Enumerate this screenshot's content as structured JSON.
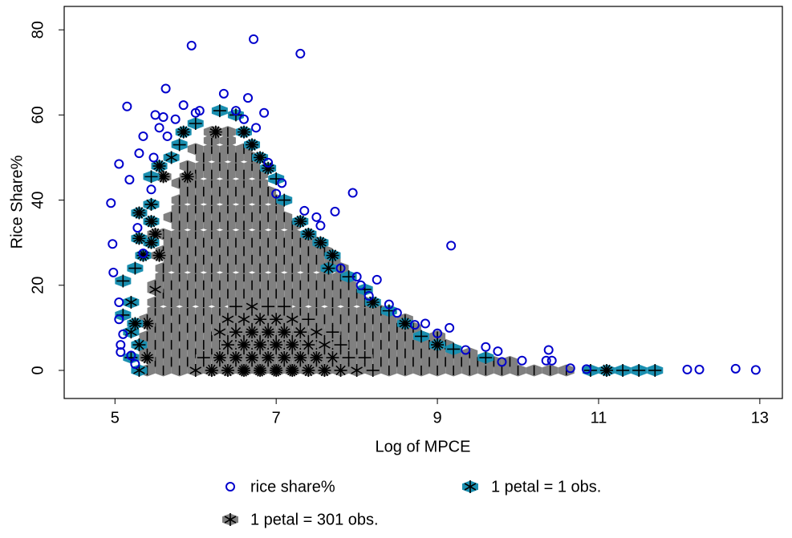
{
  "chart_data": {
    "type": "sunflower",
    "xlabel": "Log of MPCE",
    "ylabel": "Rice Share%",
    "xlim": [
      4.37,
      13.28
    ],
    "ylim": [
      -6.6,
      85.5
    ],
    "xticks": [
      5,
      7,
      9,
      11,
      13
    ],
    "yticks": [
      0,
      20,
      40,
      60,
      80
    ],
    "series": [
      {
        "name": "rice share%",
        "color": "#0000cc",
        "x": [
          4.95,
          4.97,
          4.98,
          5.05,
          5.05,
          5.05,
          5.07,
          5.07,
          5.1,
          5.15,
          5.18,
          5.2,
          5.25,
          5.28,
          5.3,
          5.35,
          5.35,
          5.45,
          5.48,
          5.5,
          5.55,
          5.6,
          5.63,
          5.65,
          5.75,
          5.85,
          5.95,
          6.0,
          6.05,
          6.35,
          6.5,
          6.6,
          6.65,
          6.72,
          6.75,
          6.85,
          6.9,
          7.0,
          7.07,
          7.3,
          7.35,
          7.5,
          7.55,
          7.73,
          7.8,
          7.95,
          8.0,
          8.05,
          8.15,
          8.25,
          8.4,
          8.5,
          8.72,
          8.85,
          9.0,
          9.15,
          9.17,
          9.35,
          9.6,
          9.75,
          9.8,
          10.05,
          10.35,
          10.38,
          10.42,
          10.65,
          10.85,
          12.1,
          12.25,
          12.7,
          12.95
        ],
        "y": [
          39.3,
          29.7,
          23,
          48.5,
          16,
          12,
          6,
          4.3,
          8.5,
          62,
          44.8,
          3.5,
          1.5,
          33.5,
          51,
          55,
          27.5,
          42.5,
          50,
          60,
          57,
          59.5,
          66.2,
          55,
          59,
          62.3,
          76.3,
          60.5,
          61,
          65,
          61,
          59,
          64,
          77.8,
          57,
          60.5,
          48.8,
          41.5,
          44,
          74.4,
          37.5,
          36,
          34,
          37.3,
          24,
          41.7,
          22,
          20,
          17.5,
          21.3,
          15.5,
          13.5,
          10.7,
          11,
          8.7,
          10,
          29.3,
          4.8,
          5.5,
          4.5,
          2,
          2.3,
          2.3,
          4.8,
          2.3,
          0.5,
          0.3,
          0.2,
          0.2,
          0.4,
          0.1
        ]
      },
      {
        "name": "1 petal = 1 obs.",
        "color": "#1a8fb0",
        "x": [
          5.3,
          5.2,
          5.3,
          5.2,
          5.25,
          5.1,
          5.2,
          5.1,
          5.25,
          5.35,
          5.45,
          5.3,
          5.45,
          5.3,
          5.45,
          5.45,
          5.55,
          5.7,
          5.8,
          5.85,
          6.0,
          6.3,
          6.5,
          6.6,
          6.7,
          6.8,
          6.9,
          7.0,
          7.1,
          7.3,
          7.4,
          7.55,
          7.7,
          7.65,
          7.9,
          8.1,
          8.2,
          8.4,
          8.6,
          8.8,
          9.0,
          9.2,
          9.6,
          10.9,
          11.1,
          11.3,
          11.5,
          11.7
        ],
        "y": [
          0,
          3,
          6,
          9,
          11,
          13,
          16,
          21,
          24,
          27,
          30,
          31,
          35,
          37,
          39,
          45.5,
          48,
          50,
          53,
          56,
          58,
          61,
          60,
          56,
          53,
          50,
          47.5,
          45,
          40,
          35,
          32,
          30,
          27,
          24,
          22,
          19,
          16,
          14,
          11,
          8,
          6,
          5,
          3,
          0,
          0,
          0,
          0,
          0
        ],
        "petals": [
          3,
          2,
          4,
          3,
          6,
          2,
          3,
          2,
          2,
          6,
          6,
          6,
          6,
          6,
          4,
          2,
          6,
          3,
          2,
          6,
          2,
          2,
          2,
          6,
          6,
          6,
          6,
          2,
          2,
          6,
          6,
          6,
          6,
          4,
          2,
          2,
          6,
          2,
          6,
          2,
          6,
          2,
          2,
          2,
          6,
          2,
          2,
          2
        ]
      },
      {
        "name": "1 petal = 301 obs.",
        "color": "#808080",
        "rows": [
          {
            "y": 0,
            "x_from": 5.4,
            "x_to": 10.6
          },
          {
            "y": 2,
            "x_from": 5.4,
            "x_to": 10.0
          },
          {
            "y": 4,
            "x_from": 5.4,
            "x_to": 9.4
          },
          {
            "y": 6,
            "x_from": 5.4,
            "x_to": 9.2
          },
          {
            "y": 8,
            "x_from": 5.4,
            "x_to": 9.0
          },
          {
            "y": 10,
            "x_from": 5.4,
            "x_to": 8.8
          },
          {
            "y": 12,
            "x_from": 5.4,
            "x_to": 8.6
          },
          {
            "y": 14,
            "x_from": 5.4,
            "x_to": 8.4
          },
          {
            "y": 16,
            "x_from": 5.5,
            "x_to": 8.2
          },
          {
            "y": 18,
            "x_from": 5.5,
            "x_to": 8.1
          },
          {
            "y": 20,
            "x_from": 5.5,
            "x_to": 8.0
          },
          {
            "y": 22,
            "x_from": 5.5,
            "x_to": 7.9
          },
          {
            "y": 24,
            "x_from": 5.6,
            "x_to": 7.8
          },
          {
            "y": 26,
            "x_from": 5.6,
            "x_to": 7.7
          },
          {
            "y": 28,
            "x_from": 5.6,
            "x_to": 7.6
          },
          {
            "y": 30,
            "x_from": 5.6,
            "x_to": 7.5
          },
          {
            "y": 32,
            "x_from": 5.6,
            "x_to": 7.4
          },
          {
            "y": 34,
            "x_from": 5.7,
            "x_to": 7.3
          },
          {
            "y": 36,
            "x_from": 5.7,
            "x_to": 7.2
          },
          {
            "y": 38,
            "x_from": 5.7,
            "x_to": 7.1
          },
          {
            "y": 40,
            "x_from": 5.8,
            "x_to": 7.0
          },
          {
            "y": 42,
            "x_from": 5.8,
            "x_to": 6.95
          },
          {
            "y": 44,
            "x_from": 5.8,
            "x_to": 6.9
          },
          {
            "y": 46,
            "x_from": 5.9,
            "x_to": 6.85
          },
          {
            "y": 48,
            "x_from": 5.9,
            "x_to": 6.8
          },
          {
            "y": 50,
            "x_from": 6.0,
            "x_to": 6.7
          },
          {
            "y": 52,
            "x_from": 6.0,
            "x_to": 6.6
          },
          {
            "y": 54,
            "x_from": 6.1,
            "x_to": 6.5
          },
          {
            "y": 56,
            "x_from": 6.2,
            "x_to": 6.4
          }
        ],
        "x": [
          6.0,
          6.2,
          6.4,
          6.6,
          6.8,
          7.0,
          7.2,
          7.4,
          7.6,
          7.8,
          8.0,
          8.2,
          6.1,
          6.3,
          6.5,
          6.7,
          6.9,
          7.1,
          7.3,
          7.5,
          7.7,
          7.9,
          8.1,
          6.4,
          6.6,
          6.8,
          7.0,
          7.2,
          7.4,
          7.6,
          7.8,
          6.3,
          6.5,
          6.7,
          6.9,
          7.1,
          7.3,
          7.5,
          7.7,
          6.4,
          6.6,
          6.8,
          7.0,
          7.2,
          7.4,
          6.5,
          6.7,
          6.9,
          7.1,
          5.4,
          5.55,
          5.5,
          5.6,
          5.9,
          6.25,
          5.5,
          5.4
        ],
        "y": [
          0,
          0,
          0,
          0,
          0,
          0,
          0,
          0,
          0,
          0,
          0,
          0,
          3,
          3,
          3,
          3,
          3,
          3,
          3,
          3,
          3,
          3,
          3,
          6,
          6,
          6,
          6,
          6,
          6,
          6,
          6,
          9,
          9,
          9,
          9,
          9,
          9,
          9,
          9,
          12,
          12,
          12,
          12,
          12,
          12,
          15,
          15,
          15,
          15,
          11,
          27,
          32,
          45.5,
          45.5,
          56,
          19,
          3
        ],
        "petals": [
          3,
          6,
          6,
          8,
          8,
          8,
          8,
          6,
          6,
          4,
          3,
          2,
          2,
          6,
          6,
          6,
          6,
          6,
          6,
          6,
          4,
          2,
          2,
          4,
          6,
          6,
          6,
          6,
          4,
          3,
          2,
          3,
          4,
          6,
          6,
          6,
          4,
          3,
          2,
          3,
          3,
          4,
          4,
          3,
          2,
          2,
          3,
          2,
          2,
          6,
          6,
          6,
          6,
          6,
          6,
          3,
          6
        ]
      }
    ]
  }
}
